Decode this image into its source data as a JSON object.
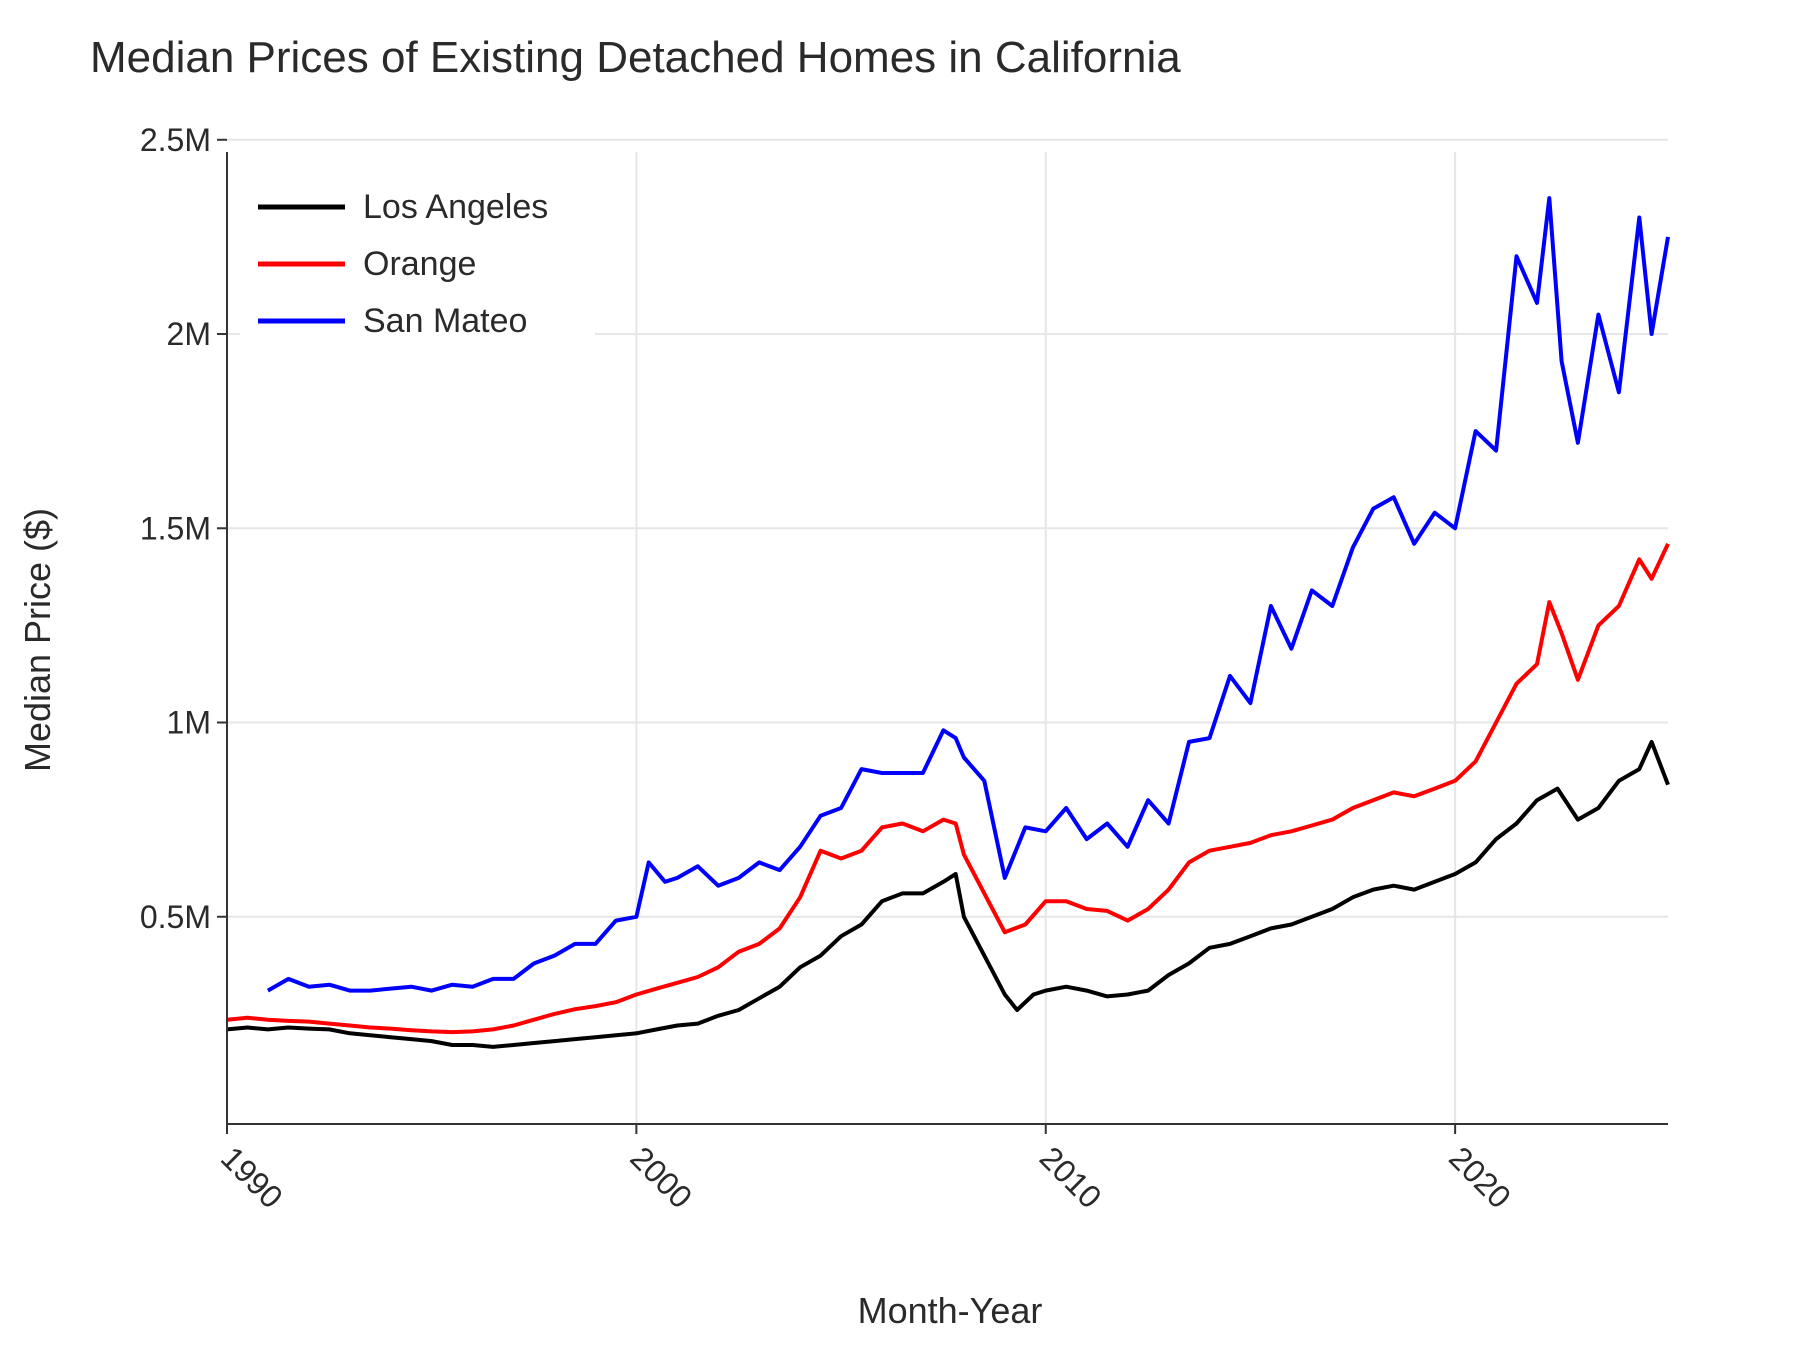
{
  "chart_data": {
    "type": "line",
    "title": "Median Prices of Existing Detached Homes in California",
    "xlabel": "Month-Year",
    "ylabel": "Median Price ($)",
    "xlim": [
      1990,
      2025.2
    ],
    "ylim": [
      0,
      2500000
    ],
    "x_ticks": [
      1990,
      2000,
      2010,
      2020
    ],
    "x_tick_labels": [
      "1990",
      "2000",
      "2010",
      "2020"
    ],
    "y_ticks": [
      500000,
      1000000,
      1500000,
      2000000,
      2500000
    ],
    "y_tick_labels": [
      "0.5M",
      "1M",
      "1.5M",
      "2M",
      "2.5M"
    ],
    "grid": true,
    "legend_position": "top-left",
    "series": [
      {
        "name": "Los Angeles",
        "color": "#000000",
        "points": [
          [
            1990.0,
            210000
          ],
          [
            1990.5,
            215000
          ],
          [
            1991.0,
            210000
          ],
          [
            1991.5,
            215000
          ],
          [
            1992.0,
            212000
          ],
          [
            1992.5,
            210000
          ],
          [
            1993.0,
            200000
          ],
          [
            1993.5,
            195000
          ],
          [
            1994.0,
            190000
          ],
          [
            1994.5,
            185000
          ],
          [
            1995.0,
            180000
          ],
          [
            1995.5,
            170000
          ],
          [
            1996.0,
            170000
          ],
          [
            1996.5,
            165000
          ],
          [
            1997.0,
            170000
          ],
          [
            1997.5,
            175000
          ],
          [
            1998.0,
            180000
          ],
          [
            1998.5,
            185000
          ],
          [
            1999.0,
            190000
          ],
          [
            1999.5,
            195000
          ],
          [
            2000.0,
            200000
          ],
          [
            2000.5,
            210000
          ],
          [
            2001.0,
            220000
          ],
          [
            2001.5,
            225000
          ],
          [
            2002.0,
            245000
          ],
          [
            2002.5,
            260000
          ],
          [
            2003.0,
            290000
          ],
          [
            2003.5,
            320000
          ],
          [
            2004.0,
            370000
          ],
          [
            2004.5,
            400000
          ],
          [
            2005.0,
            450000
          ],
          [
            2005.5,
            480000
          ],
          [
            2006.0,
            540000
          ],
          [
            2006.5,
            560000
          ],
          [
            2007.0,
            560000
          ],
          [
            2007.5,
            590000
          ],
          [
            2007.8,
            610000
          ],
          [
            2008.0,
            500000
          ],
          [
            2008.5,
            400000
          ],
          [
            2009.0,
            300000
          ],
          [
            2009.3,
            260000
          ],
          [
            2009.7,
            300000
          ],
          [
            2010.0,
            310000
          ],
          [
            2010.5,
            320000
          ],
          [
            2011.0,
            310000
          ],
          [
            2011.5,
            295000
          ],
          [
            2012.0,
            300000
          ],
          [
            2012.5,
            310000
          ],
          [
            2013.0,
            350000
          ],
          [
            2013.5,
            380000
          ],
          [
            2014.0,
            420000
          ],
          [
            2014.5,
            430000
          ],
          [
            2015.0,
            450000
          ],
          [
            2015.5,
            470000
          ],
          [
            2016.0,
            480000
          ],
          [
            2016.5,
            500000
          ],
          [
            2017.0,
            520000
          ],
          [
            2017.5,
            550000
          ],
          [
            2018.0,
            570000
          ],
          [
            2018.5,
            580000
          ],
          [
            2019.0,
            570000
          ],
          [
            2019.5,
            590000
          ],
          [
            2020.0,
            610000
          ],
          [
            2020.5,
            640000
          ],
          [
            2021.0,
            700000
          ],
          [
            2021.5,
            740000
          ],
          [
            2022.0,
            800000
          ],
          [
            2022.5,
            830000
          ],
          [
            2023.0,
            750000
          ],
          [
            2023.5,
            780000
          ],
          [
            2024.0,
            850000
          ],
          [
            2024.5,
            880000
          ],
          [
            2024.8,
            950000
          ],
          [
            2025.2,
            840000
          ]
        ]
      },
      {
        "name": "Orange",
        "color": "#ff0000",
        "points": [
          [
            1990.0,
            235000
          ],
          [
            1990.5,
            240000
          ],
          [
            1991.0,
            235000
          ],
          [
            1991.5,
            232000
          ],
          [
            1992.0,
            230000
          ],
          [
            1992.5,
            225000
          ],
          [
            1993.0,
            220000
          ],
          [
            1993.5,
            215000
          ],
          [
            1994.0,
            212000
          ],
          [
            1994.5,
            208000
          ],
          [
            1995.0,
            205000
          ],
          [
            1995.5,
            203000
          ],
          [
            1996.0,
            205000
          ],
          [
            1996.5,
            210000
          ],
          [
            1997.0,
            220000
          ],
          [
            1997.5,
            235000
          ],
          [
            1998.0,
            250000
          ],
          [
            1998.5,
            262000
          ],
          [
            1999.0,
            270000
          ],
          [
            1999.5,
            280000
          ],
          [
            2000.0,
            300000
          ],
          [
            2000.5,
            315000
          ],
          [
            2001.0,
            330000
          ],
          [
            2001.5,
            345000
          ],
          [
            2002.0,
            370000
          ],
          [
            2002.5,
            410000
          ],
          [
            2003.0,
            430000
          ],
          [
            2003.5,
            470000
          ],
          [
            2004.0,
            550000
          ],
          [
            2004.5,
            670000
          ],
          [
            2005.0,
            650000
          ],
          [
            2005.5,
            670000
          ],
          [
            2006.0,
            730000
          ],
          [
            2006.5,
            740000
          ],
          [
            2007.0,
            720000
          ],
          [
            2007.5,
            750000
          ],
          [
            2007.8,
            740000
          ],
          [
            2008.0,
            660000
          ],
          [
            2008.5,
            560000
          ],
          [
            2009.0,
            460000
          ],
          [
            2009.5,
            480000
          ],
          [
            2010.0,
            540000
          ],
          [
            2010.5,
            540000
          ],
          [
            2011.0,
            520000
          ],
          [
            2011.5,
            515000
          ],
          [
            2012.0,
            490000
          ],
          [
            2012.5,
            520000
          ],
          [
            2013.0,
            570000
          ],
          [
            2013.5,
            640000
          ],
          [
            2014.0,
            670000
          ],
          [
            2014.5,
            680000
          ],
          [
            2015.0,
            690000
          ],
          [
            2015.5,
            710000
          ],
          [
            2016.0,
            720000
          ],
          [
            2016.5,
            735000
          ],
          [
            2017.0,
            750000
          ],
          [
            2017.5,
            780000
          ],
          [
            2018.0,
            800000
          ],
          [
            2018.5,
            820000
          ],
          [
            2019.0,
            810000
          ],
          [
            2019.5,
            830000
          ],
          [
            2020.0,
            850000
          ],
          [
            2020.5,
            900000
          ],
          [
            2021.0,
            1000000
          ],
          [
            2021.5,
            1100000
          ],
          [
            2022.0,
            1150000
          ],
          [
            2022.3,
            1310000
          ],
          [
            2022.6,
            1230000
          ],
          [
            2023.0,
            1110000
          ],
          [
            2023.5,
            1250000
          ],
          [
            2024.0,
            1300000
          ],
          [
            2024.5,
            1420000
          ],
          [
            2024.8,
            1370000
          ],
          [
            2025.2,
            1460000
          ]
        ]
      },
      {
        "name": "San Mateo",
        "color": "#0000ff",
        "points": [
          [
            1991.0,
            310000
          ],
          [
            1991.5,
            340000
          ],
          [
            1992.0,
            320000
          ],
          [
            1992.5,
            325000
          ],
          [
            1993.0,
            310000
          ],
          [
            1993.5,
            310000
          ],
          [
            1994.0,
            315000
          ],
          [
            1994.5,
            320000
          ],
          [
            1995.0,
            310000
          ],
          [
            1995.5,
            325000
          ],
          [
            1996.0,
            320000
          ],
          [
            1996.5,
            340000
          ],
          [
            1997.0,
            340000
          ],
          [
            1997.5,
            380000
          ],
          [
            1998.0,
            400000
          ],
          [
            1998.5,
            430000
          ],
          [
            1999.0,
            430000
          ],
          [
            1999.5,
            490000
          ],
          [
            2000.0,
            500000
          ],
          [
            2000.3,
            640000
          ],
          [
            2000.7,
            590000
          ],
          [
            2001.0,
            600000
          ],
          [
            2001.5,
            630000
          ],
          [
            2002.0,
            580000
          ],
          [
            2002.5,
            600000
          ],
          [
            2003.0,
            640000
          ],
          [
            2003.5,
            620000
          ],
          [
            2004.0,
            680000
          ],
          [
            2004.5,
            760000
          ],
          [
            2005.0,
            780000
          ],
          [
            2005.5,
            880000
          ],
          [
            2006.0,
            870000
          ],
          [
            2006.5,
            870000
          ],
          [
            2007.0,
            870000
          ],
          [
            2007.5,
            980000
          ],
          [
            2007.8,
            960000
          ],
          [
            2008.0,
            910000
          ],
          [
            2008.5,
            850000
          ],
          [
            2009.0,
            600000
          ],
          [
            2009.5,
            730000
          ],
          [
            2010.0,
            720000
          ],
          [
            2010.5,
            780000
          ],
          [
            2011.0,
            700000
          ],
          [
            2011.5,
            740000
          ],
          [
            2012.0,
            680000
          ],
          [
            2012.5,
            800000
          ],
          [
            2013.0,
            740000
          ],
          [
            2013.5,
            950000
          ],
          [
            2014.0,
            960000
          ],
          [
            2014.5,
            1120000
          ],
          [
            2015.0,
            1050000
          ],
          [
            2015.5,
            1300000
          ],
          [
            2016.0,
            1190000
          ],
          [
            2016.5,
            1340000
          ],
          [
            2017.0,
            1300000
          ],
          [
            2017.5,
            1450000
          ],
          [
            2018.0,
            1550000
          ],
          [
            2018.5,
            1580000
          ],
          [
            2019.0,
            1460000
          ],
          [
            2019.5,
            1540000
          ],
          [
            2020.0,
            1500000
          ],
          [
            2020.5,
            1750000
          ],
          [
            2021.0,
            1700000
          ],
          [
            2021.5,
            2200000
          ],
          [
            2022.0,
            2080000
          ],
          [
            2022.3,
            2350000
          ],
          [
            2022.6,
            1930000
          ],
          [
            2023.0,
            1720000
          ],
          [
            2023.5,
            2050000
          ],
          [
            2024.0,
            1850000
          ],
          [
            2024.5,
            2300000
          ],
          [
            2024.8,
            2000000
          ],
          [
            2025.2,
            2250000
          ]
        ]
      }
    ]
  }
}
